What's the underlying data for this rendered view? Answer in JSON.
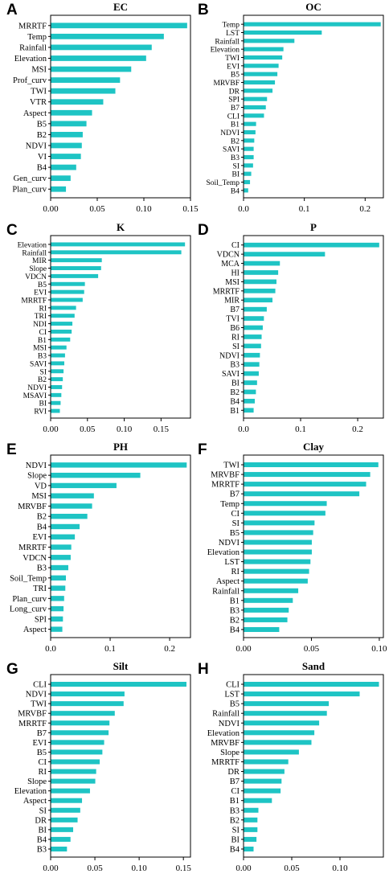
{
  "colors": {
    "bar": "#1ec4c4",
    "axis": "#000000"
  },
  "chart_data": [
    {
      "panel": "A",
      "title": "EC",
      "type": "bar",
      "orientation": "horizontal",
      "categories": [
        "MRRTF",
        "Temp",
        "Rainfall",
        "Elevation",
        "MSI",
        "Prof_curv",
        "TWI",
        "VTR",
        "Aspect",
        "B5",
        "B2",
        "NDVI",
        "VI",
        "B4",
        "Gen_curv",
        "Plan_curv"
      ],
      "values": [
        0.146,
        0.121,
        0.108,
        0.102,
        0.086,
        0.074,
        0.069,
        0.056,
        0.044,
        0.038,
        0.034,
        0.033,
        0.032,
        0.027,
        0.021,
        0.016
      ],
      "xlim": [
        0,
        0.15
      ],
      "xticks": [
        0.0,
        0.05,
        0.1,
        0.15
      ],
      "xtick_labels": [
        "0.00",
        "0.05",
        "0.10",
        "0.15"
      ]
    },
    {
      "panel": "B",
      "title": "OC",
      "type": "bar",
      "orientation": "horizontal",
      "categories": [
        "Temp",
        "LST",
        "Rainfall",
        "Elevation",
        "TWI",
        "EVI",
        "B5",
        "MRVBF",
        "DR",
        "SPI",
        "B7",
        "CLI",
        "B1",
        "NDVI",
        "B2",
        "SAVI",
        "B3",
        "SI",
        "BI",
        "Soil_Temp",
        "B4"
      ],
      "values": [
        0.225,
        0.128,
        0.083,
        0.065,
        0.063,
        0.057,
        0.055,
        0.051,
        0.047,
        0.038,
        0.036,
        0.033,
        0.02,
        0.019,
        0.017,
        0.016,
        0.016,
        0.015,
        0.012,
        0.01,
        0.007
      ],
      "xlim": [
        0,
        0.23
      ],
      "xticks": [
        0.0,
        0.1,
        0.2
      ],
      "xtick_labels": [
        "0.0",
        "0.1",
        "0.2"
      ]
    },
    {
      "panel": "C",
      "title": "K",
      "type": "bar",
      "orientation": "horizontal",
      "categories": [
        "Elevation",
        "Rainfall",
        "MIR",
        "Slope",
        "VDCN",
        "B5",
        "EVI",
        "MRRTF",
        "RI",
        "TRI",
        "NDI",
        "CI",
        "B1",
        "MSI",
        "B3",
        "SAVI",
        "SI",
        "B2",
        "NDVI",
        "MSAVI",
        "BI",
        "RVI"
      ],
      "values": [
        0.182,
        0.177,
        0.069,
        0.068,
        0.064,
        0.046,
        0.045,
        0.043,
        0.034,
        0.032,
        0.029,
        0.028,
        0.026,
        0.021,
        0.019,
        0.018,
        0.017,
        0.016,
        0.015,
        0.014,
        0.013,
        0.012
      ],
      "xlim": [
        0,
        0.19
      ],
      "xticks": [
        0.0,
        0.05,
        0.1,
        0.15
      ],
      "xtick_labels": [
        "0.00",
        "0.05",
        "0.10",
        "0.15"
      ]
    },
    {
      "panel": "D",
      "title": "P",
      "type": "bar",
      "orientation": "horizontal",
      "categories": [
        "CI",
        "VDCN",
        "MCA",
        "HI",
        "MSI",
        "MRRTF",
        "MIR",
        "B7",
        "TVI",
        "B6",
        "RI",
        "SI",
        "NDVI",
        "B3",
        "SAVI",
        "BI",
        "B2",
        "B4",
        "B1"
      ],
      "values": [
        0.237,
        0.142,
        0.063,
        0.06,
        0.057,
        0.055,
        0.05,
        0.04,
        0.035,
        0.033,
        0.031,
        0.03,
        0.028,
        0.027,
        0.026,
        0.023,
        0.021,
        0.019,
        0.017
      ],
      "xlim": [
        0,
        0.245
      ],
      "xticks": [
        0.0,
        0.1,
        0.2
      ],
      "xtick_labels": [
        "0.0",
        "0.1",
        "0.2"
      ]
    },
    {
      "panel": "E",
      "title": "PH",
      "type": "bar",
      "orientation": "horizontal",
      "categories": [
        "NDVI",
        "Slope",
        "VD",
        "MSI",
        "MRVBF",
        "B2",
        "B4",
        "EVI",
        "MRRTF",
        "VDCN",
        "B3",
        "Soil_Temp",
        "TRI",
        "Plan_curv",
        "Long_curv",
        "SPI",
        "Aspect"
      ],
      "values": [
        0.228,
        0.15,
        0.11,
        0.072,
        0.069,
        0.061,
        0.048,
        0.04,
        0.034,
        0.033,
        0.029,
        0.025,
        0.024,
        0.022,
        0.021,
        0.02,
        0.019
      ],
      "xlim": [
        0,
        0.235
      ],
      "xticks": [
        0.0,
        0.1,
        0.2
      ],
      "xtick_labels": [
        "0.0",
        "0.1",
        "0.2"
      ]
    },
    {
      "panel": "F",
      "title": "Clay",
      "type": "bar",
      "orientation": "horizontal",
      "categories": [
        "TWI",
        "MRVBF",
        "MRRTF",
        "B7",
        "Temp",
        "CI",
        "SI",
        "B5",
        "NDVI",
        "Elevation",
        "LST",
        "RI",
        "Aspect",
        "Rainfall",
        "B1",
        "B3",
        "B2",
        "B4"
      ],
      "values": [
        0.099,
        0.093,
        0.09,
        0.085,
        0.061,
        0.06,
        0.052,
        0.051,
        0.05,
        0.05,
        0.049,
        0.048,
        0.047,
        0.04,
        0.036,
        0.033,
        0.032,
        0.026
      ],
      "xlim": [
        0,
        0.103
      ],
      "xticks": [
        0.0,
        0.05,
        0.1
      ],
      "xtick_labels": [
        "0.00",
        "0.05",
        "0.10"
      ]
    },
    {
      "panel": "G",
      "title": "Silt",
      "type": "bar",
      "orientation": "horizontal",
      "categories": [
        "CLI",
        "NDVI",
        "TWI",
        "MRVBF",
        "MRRTF",
        "B7",
        "EVI",
        "B5",
        "CI",
        "RI",
        "Slope",
        "Elevation",
        "Aspect",
        "SI",
        "DR",
        "BI",
        "B4",
        "B3"
      ],
      "values": [
        0.153,
        0.083,
        0.082,
        0.072,
        0.066,
        0.065,
        0.06,
        0.058,
        0.055,
        0.051,
        0.05,
        0.044,
        0.035,
        0.033,
        0.03,
        0.025,
        0.022,
        0.018
      ],
      "xlim": [
        0,
        0.158
      ],
      "xticks": [
        0.0,
        0.05,
        0.1,
        0.15
      ],
      "xtick_labels": [
        "0.00",
        "0.05",
        "0.10",
        "0.15"
      ]
    },
    {
      "panel": "H",
      "title": "Sand",
      "type": "bar",
      "orientation": "horizontal",
      "categories": [
        "CLI",
        "LST",
        "B5",
        "Rainfall",
        "NDVI",
        "Elevation",
        "MRVBF",
        "Slope",
        "MRRTF",
        "DR",
        "B7",
        "CI",
        "B1",
        "B3",
        "B2",
        "SI",
        "BI",
        "B4"
      ],
      "values": [
        0.14,
        0.12,
        0.088,
        0.086,
        0.078,
        0.073,
        0.07,
        0.057,
        0.046,
        0.042,
        0.039,
        0.038,
        0.029,
        0.015,
        0.014,
        0.014,
        0.013,
        0.01
      ],
      "xlim": [
        0,
        0.145
      ],
      "xticks": [
        0.0,
        0.05,
        0.1
      ],
      "xtick_labels": [
        "0.00",
        "0.05",
        "0.10"
      ]
    }
  ]
}
